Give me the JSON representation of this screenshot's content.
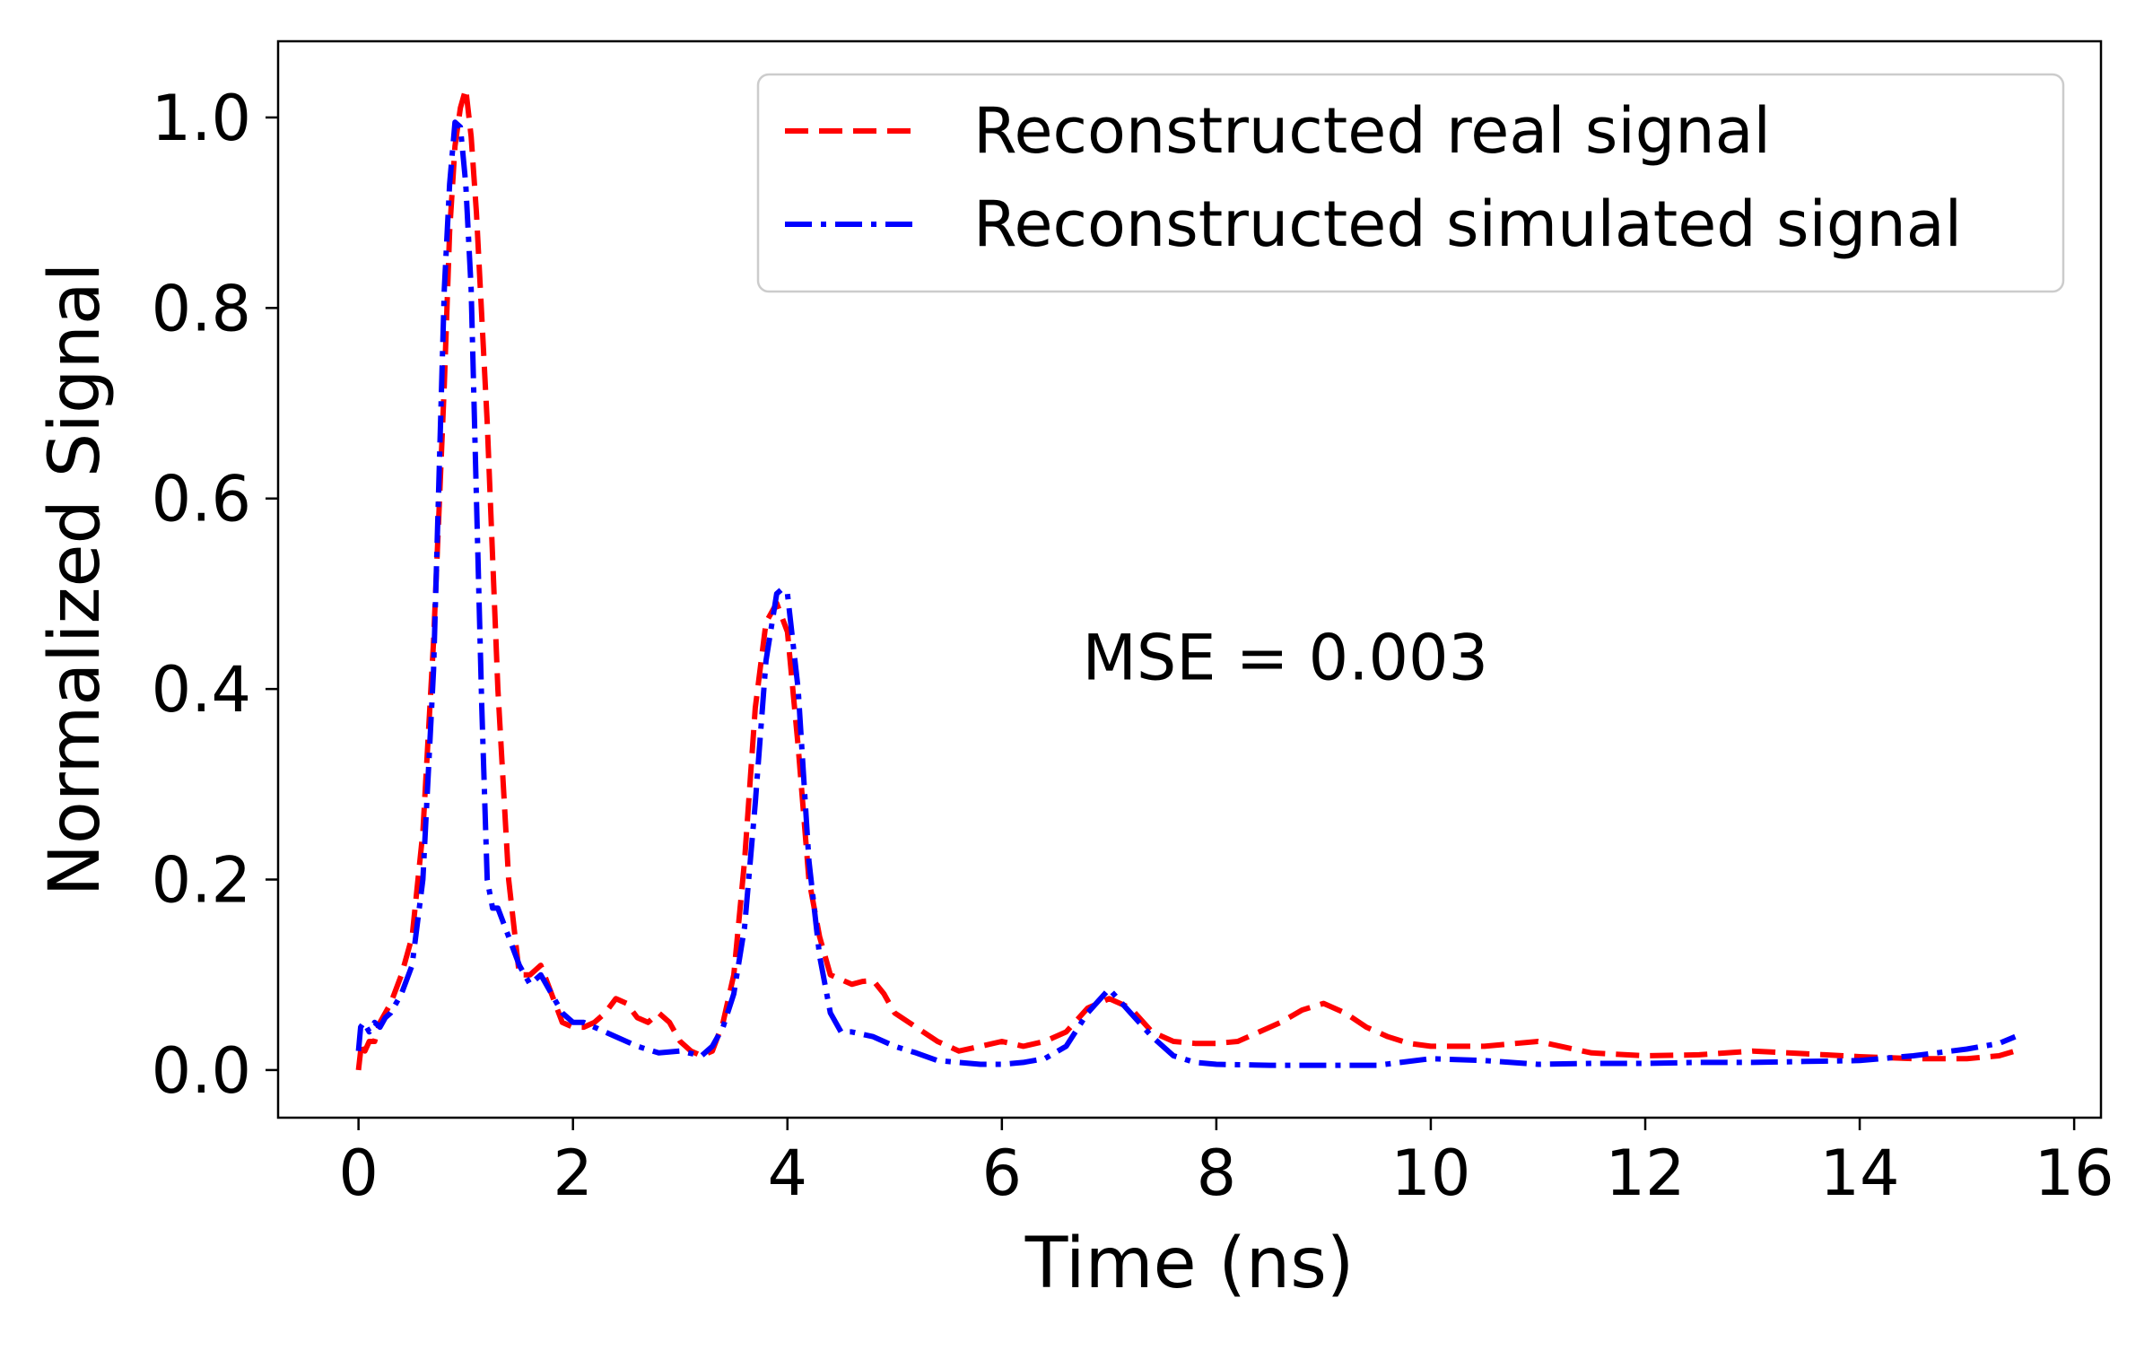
{
  "chart_data": {
    "type": "line",
    "xlabel": "Time (ns)",
    "ylabel": "Normalized Signal",
    "xlim": [
      -0.75,
      16.25
    ],
    "ylim": [
      -0.05,
      1.08
    ],
    "xticks": [
      0,
      2,
      4,
      6,
      8,
      10,
      12,
      14,
      16
    ],
    "xtick_labels": [
      "0",
      "2",
      "4",
      "6",
      "8",
      "10",
      "12",
      "14",
      "16"
    ],
    "yticks": [
      0.0,
      0.2,
      0.4,
      0.6,
      0.8,
      1.0
    ],
    "ytick_labels": [
      "0.0",
      "0.2",
      "0.4",
      "0.6",
      "0.8",
      "1.0"
    ],
    "grid": false,
    "legend_position": "top-right",
    "annotation": "MSE = 0.003",
    "annotation_anchor": {
      "x": 6.75,
      "y": 0.41
    },
    "series": [
      {
        "name": "Reconstructed real signal",
        "color": "#ff0000",
        "style": "dashed",
        "x": [
          0,
          0.03,
          0.06,
          0.1,
          0.15,
          0.2,
          0.3,
          0.4,
          0.5,
          0.6,
          0.7,
          0.8,
          0.85,
          0.9,
          0.95,
          1.0,
          1.05,
          1.1,
          1.2,
          1.3,
          1.4,
          1.5,
          1.6,
          1.7,
          1.8,
          1.9,
          2.0,
          2.1,
          2.2,
          2.3,
          2.4,
          2.5,
          2.6,
          2.7,
          2.8,
          2.9,
          3.0,
          3.1,
          3.2,
          3.3,
          3.4,
          3.5,
          3.6,
          3.7,
          3.8,
          3.9,
          4.0,
          4.1,
          4.2,
          4.3,
          4.4,
          4.5,
          4.6,
          4.7,
          4.8,
          4.9,
          5.0,
          5.2,
          5.4,
          5.6,
          5.8,
          6.0,
          6.2,
          6.4,
          6.6,
          6.8,
          7.0,
          7.2,
          7.4,
          7.6,
          7.8,
          8.0,
          8.2,
          8.4,
          8.6,
          8.8,
          9.0,
          9.2,
          9.4,
          9.6,
          9.8,
          10.0,
          10.5,
          11.0,
          11.5,
          12.0,
          12.5,
          13.0,
          13.5,
          14.0,
          14.5,
          15.0,
          15.3,
          15.45
        ],
        "values": [
          0.0,
          0.03,
          0.02,
          0.03,
          0.03,
          0.05,
          0.07,
          0.1,
          0.14,
          0.25,
          0.45,
          0.72,
          0.88,
          0.97,
          1.01,
          1.03,
          0.98,
          0.9,
          0.68,
          0.4,
          0.2,
          0.1,
          0.1,
          0.11,
          0.08,
          0.05,
          0.045,
          0.045,
          0.05,
          0.06,
          0.075,
          0.07,
          0.055,
          0.05,
          0.06,
          0.05,
          0.03,
          0.02,
          0.015,
          0.02,
          0.05,
          0.1,
          0.22,
          0.38,
          0.47,
          0.49,
          0.46,
          0.34,
          0.2,
          0.14,
          0.1,
          0.095,
          0.09,
          0.093,
          0.094,
          0.08,
          0.06,
          0.045,
          0.03,
          0.02,
          0.025,
          0.03,
          0.025,
          0.03,
          0.04,
          0.065,
          0.075,
          0.065,
          0.04,
          0.03,
          0.028,
          0.028,
          0.03,
          0.04,
          0.05,
          0.063,
          0.07,
          0.06,
          0.045,
          0.035,
          0.028,
          0.025,
          0.025,
          0.03,
          0.018,
          0.015,
          0.016,
          0.02,
          0.017,
          0.014,
          0.012,
          0.012,
          0.015,
          0.02
        ]
      },
      {
        "name": "Reconstructed simulated signal",
        "color": "#0000ff",
        "style": "dashdot",
        "x": [
          0,
          0.02,
          0.05,
          0.1,
          0.15,
          0.2,
          0.25,
          0.3,
          0.4,
          0.5,
          0.6,
          0.7,
          0.75,
          0.8,
          0.85,
          0.9,
          0.95,
          1.0,
          1.05,
          1.1,
          1.15,
          1.2,
          1.25,
          1.3,
          1.4,
          1.5,
          1.6,
          1.7,
          1.8,
          1.9,
          2.0,
          2.1,
          2.2,
          2.4,
          2.6,
          2.8,
          3.0,
          3.2,
          3.3,
          3.4,
          3.5,
          3.6,
          3.7,
          3.8,
          3.9,
          3.95,
          4.0,
          4.1,
          4.2,
          4.3,
          4.4,
          4.5,
          4.6,
          4.8,
          5.0,
          5.2,
          5.4,
          5.6,
          5.8,
          6.0,
          6.2,
          6.4,
          6.6,
          6.8,
          7.0,
          7.2,
          7.4,
          7.6,
          7.8,
          8.0,
          8.5,
          9.0,
          9.5,
          10.0,
          10.5,
          11.0,
          11.5,
          12.0,
          12.5,
          13.0,
          13.5,
          14.0,
          14.5,
          15.0,
          15.3,
          15.45
        ],
        "values": [
          0.02,
          0.045,
          0.05,
          0.04,
          0.05,
          0.045,
          0.055,
          0.06,
          0.08,
          0.11,
          0.2,
          0.42,
          0.62,
          0.82,
          0.93,
          0.995,
          0.99,
          0.93,
          0.82,
          0.6,
          0.38,
          0.2,
          0.17,
          0.17,
          0.14,
          0.11,
          0.09,
          0.1,
          0.08,
          0.06,
          0.05,
          0.05,
          0.045,
          0.035,
          0.025,
          0.018,
          0.02,
          0.015,
          0.025,
          0.045,
          0.08,
          0.15,
          0.28,
          0.43,
          0.5,
          0.505,
          0.5,
          0.4,
          0.22,
          0.12,
          0.06,
          0.04,
          0.04,
          0.035,
          0.025,
          0.018,
          0.01,
          0.008,
          0.006,
          0.006,
          0.008,
          0.012,
          0.025,
          0.06,
          0.085,
          0.06,
          0.035,
          0.015,
          0.008,
          0.006,
          0.005,
          0.005,
          0.005,
          0.012,
          0.01,
          0.006,
          0.007,
          0.007,
          0.008,
          0.008,
          0.009,
          0.01,
          0.015,
          0.022,
          0.028,
          0.035
        ]
      }
    ]
  }
}
